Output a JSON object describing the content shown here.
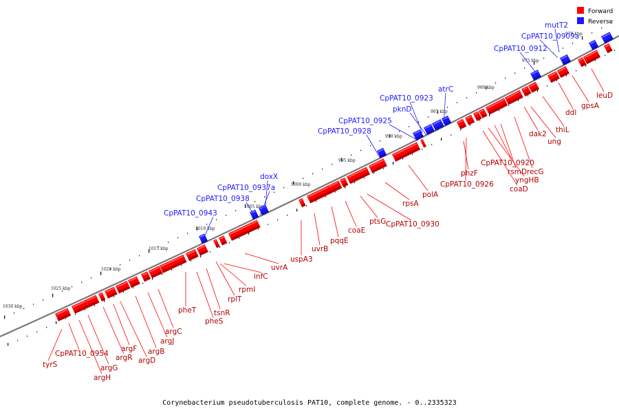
{
  "colors": {
    "forward": "#ff0000",
    "reverse": "#1a1aff",
    "backbone": "#777777"
  },
  "legend": [
    {
      "label": "Forward",
      "color": "#ff0000"
    },
    {
      "label": "Reverse",
      "color": "#1a1aff"
    }
  ],
  "caption": "Corynebacterium pseudotuberculosis PAT10, complete genome. - 0..2335323",
  "kbp_labels": [
    "970 kbp",
    "975 kbp",
    "980 kbp",
    "985 kbp",
    "990 kbp",
    "995 kbp",
    "1000 kbp",
    "1005 kbp",
    "1010 kbp",
    "1015 kbp",
    "1020 kbp",
    "1025 kbp",
    "1030 kbp"
  ],
  "reverse_genes": [
    "mutT2",
    "CpPAT10_0909a",
    "CpPAT10_0912",
    "atrC",
    "CpPAT10_0923",
    "pknD",
    "CpPAT10_0925",
    "CpPAT10_0928",
    "doxX",
    "CpPAT10_0937a",
    "CpPAT10_0938",
    "CpPAT10_0943"
  ],
  "forward_genes": [
    "leuD",
    "gpsA",
    "ddl",
    "thiL",
    "ung",
    "dak2",
    "recG",
    "rsmD",
    "CpPAT10_0920",
    "yngHB",
    "coaD",
    "phzF",
    "CpPAT10_0926",
    "polA",
    "rpsA",
    "CpPAT10_0930",
    "ptsG",
    "coaE",
    "pqqE",
    "uvrB",
    "uspA3",
    "uvrA",
    "infC",
    "rpmI",
    "rplT",
    "tsnR",
    "pheS",
    "pheT",
    "argC",
    "argJ",
    "argB",
    "argD",
    "argF",
    "argR",
    "argG",
    "argH",
    "CpPAT10_0954",
    "tyrS"
  ]
}
